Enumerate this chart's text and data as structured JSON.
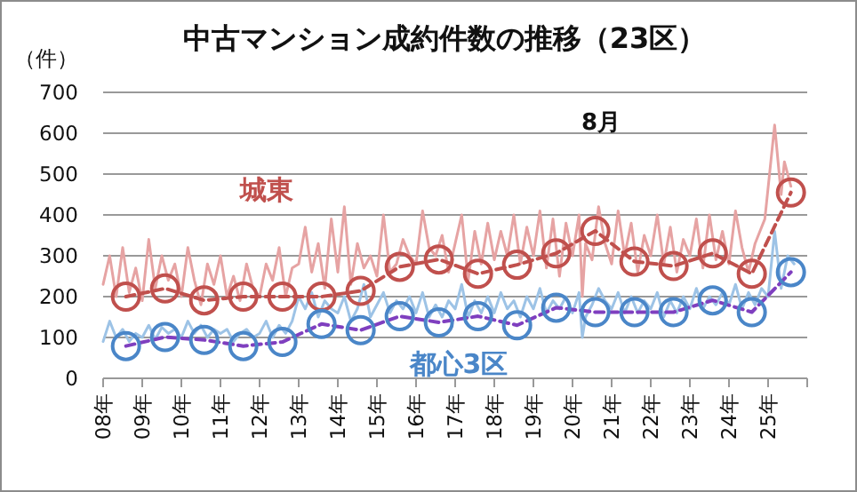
{
  "chart_data": {
    "type": "line",
    "title": "中古マンション成約件数の推移（23区）",
    "ylabel": "（件）",
    "annotations": [
      "8月"
    ],
    "xlim": [
      "2008-01",
      "2026-01"
    ],
    "xticks": [
      {
        "value": "2008-01",
        "label": "08年"
      },
      {
        "value": "2009-01",
        "label": "09年"
      },
      {
        "value": "2010-01",
        "label": "10年"
      },
      {
        "value": "2011-01",
        "label": "11年"
      },
      {
        "value": "2012-01",
        "label": "12年"
      },
      {
        "value": "2013-01",
        "label": "13年"
      },
      {
        "value": "2014-01",
        "label": "14年"
      },
      {
        "value": "2015-01",
        "label": "15年"
      },
      {
        "value": "2016-01",
        "label": "16年"
      },
      {
        "value": "2017-01",
        "label": "17年"
      },
      {
        "value": "2018-01",
        "label": "18年"
      },
      {
        "value": "2019-01",
        "label": "19年"
      },
      {
        "value": "2020-01",
        "label": "20年"
      },
      {
        "value": "2021-01",
        "label": "21年"
      },
      {
        "value": "2022-01",
        "label": "22年"
      },
      {
        "value": "2023-01",
        "label": "23年"
      },
      {
        "value": "2024-01",
        "label": "24年"
      },
      {
        "value": "2025-01",
        "label": "25年"
      },
      {
        "value": "2026-01",
        "label": null
      }
    ],
    "ylim": [
      0,
      700
    ],
    "yticks": [
      0,
      100,
      200,
      300,
      400,
      500,
      600,
      700
    ],
    "grid": "y",
    "series": [
      {
        "type": "line",
        "color": "#e6a3a3",
        "x": [
          "2008-01",
          "2008-03",
          "2008-05",
          "2008-07",
          "2008-09",
          "2008-11",
          "2009-01",
          "2009-03",
          "2009-05",
          "2009-07",
          "2009-09",
          "2009-11",
          "2010-01",
          "2010-03",
          "2010-05",
          "2010-07",
          "2010-09",
          "2010-11",
          "2011-01",
          "2011-03",
          "2011-05",
          "2011-07",
          "2011-09",
          "2011-11",
          "2012-01",
          "2012-03",
          "2012-05",
          "2012-07",
          "2012-09",
          "2012-11",
          "2013-01",
          "2013-03",
          "2013-05",
          "2013-07",
          "2013-09",
          "2013-11",
          "2014-01",
          "2014-03",
          "2014-05",
          "2014-07",
          "2014-09",
          "2014-11",
          "2015-01",
          "2015-03",
          "2015-05",
          "2015-07",
          "2015-09",
          "2015-11",
          "2016-01",
          "2016-03",
          "2016-05",
          "2016-07",
          "2016-09",
          "2016-11",
          "2017-01",
          "2017-03",
          "2017-05",
          "2017-07",
          "2017-09",
          "2017-11",
          "2018-01",
          "2018-03",
          "2018-05",
          "2018-07",
          "2018-09",
          "2018-11",
          "2019-01",
          "2019-03",
          "2019-05",
          "2019-07",
          "2019-09",
          "2019-11",
          "2020-01",
          "2020-03",
          "2020-04",
          "2020-05",
          "2020-07",
          "2020-09",
          "2020-11",
          "2021-01",
          "2021-03",
          "2021-05",
          "2021-07",
          "2021-09",
          "2021-11",
          "2022-01",
          "2022-03",
          "2022-05",
          "2022-07",
          "2022-09",
          "2022-11",
          "2023-01",
          "2023-03",
          "2023-05",
          "2023-07",
          "2023-09",
          "2023-11",
          "2024-01",
          "2024-03",
          "2024-05",
          "2024-07",
          "2024-09",
          "2024-12",
          "2025-03",
          "2025-05",
          "2025-06",
          "2025-08"
        ],
        "values": [
          230,
          300,
          200,
          320,
          210,
          270,
          190,
          340,
          220,
          300,
          240,
          280,
          200,
          320,
          240,
          180,
          280,
          230,
          300,
          200,
          250,
          190,
          280,
          220,
          200,
          280,
          240,
          320,
          200,
          270,
          280,
          370,
          260,
          330,
          220,
          390,
          260,
          420,
          230,
          330,
          270,
          300,
          250,
          400,
          260,
          280,
          340,
          300,
          280,
          410,
          320,
          300,
          350,
          260,
          330,
          400,
          240,
          360,
          280,
          380,
          290,
          360,
          300,
          400,
          280,
          370,
          300,
          410,
          270,
          390,
          250,
          380,
          300,
          400,
          200,
          330,
          290,
          420,
          330,
          280,
          410,
          300,
          380,
          260,
          350,
          300,
          400,
          280,
          370,
          260,
          340,
          300,
          390,
          270,
          400,
          290,
          360,
          280,
          410,
          320,
          260,
          330,
          390,
          620,
          450,
          530,
          470
        ]
      },
      {
        "type": "line",
        "color": "#9dc3e6",
        "x": [
          "2008-01",
          "2008-03",
          "2008-05",
          "2008-07",
          "2008-09",
          "2008-11",
          "2009-01",
          "2009-03",
          "2009-05",
          "2009-07",
          "2009-09",
          "2009-11",
          "2010-01",
          "2010-03",
          "2010-05",
          "2010-07",
          "2010-09",
          "2010-11",
          "2011-01",
          "2011-03",
          "2011-05",
          "2011-07",
          "2011-09",
          "2011-11",
          "2012-01",
          "2012-03",
          "2012-05",
          "2012-07",
          "2012-09",
          "2012-11",
          "2013-01",
          "2013-03",
          "2013-05",
          "2013-07",
          "2013-09",
          "2013-11",
          "2014-01",
          "2014-03",
          "2014-05",
          "2014-07",
          "2014-09",
          "2014-11",
          "2015-01",
          "2015-03",
          "2015-05",
          "2015-07",
          "2015-09",
          "2015-11",
          "2016-01",
          "2016-03",
          "2016-05",
          "2016-07",
          "2016-09",
          "2016-11",
          "2017-01",
          "2017-03",
          "2017-05",
          "2017-07",
          "2017-09",
          "2017-11",
          "2018-01",
          "2018-03",
          "2018-05",
          "2018-07",
          "2018-09",
          "2018-11",
          "2019-01",
          "2019-03",
          "2019-05",
          "2019-07",
          "2019-09",
          "2019-11",
          "2020-01",
          "2020-03",
          "2020-04",
          "2020-05",
          "2020-07",
          "2020-09",
          "2020-11",
          "2021-01",
          "2021-03",
          "2021-05",
          "2021-07",
          "2021-09",
          "2021-11",
          "2022-01",
          "2022-03",
          "2022-05",
          "2022-07",
          "2022-09",
          "2022-11",
          "2023-01",
          "2023-03",
          "2023-05",
          "2023-07",
          "2023-09",
          "2023-11",
          "2024-01",
          "2024-03",
          "2024-05",
          "2024-07",
          "2024-09",
          "2024-11",
          "2025-01",
          "2025-03",
          "2025-05",
          "2025-07",
          "2025-09"
        ],
        "values": [
          90,
          140,
          100,
          120,
          90,
          110,
          100,
          130,
          95,
          125,
          110,
          120,
          100,
          140,
          110,
          130,
          100,
          120,
          110,
          120,
          90,
          110,
          120,
          100,
          110,
          140,
          100,
          130,
          110,
          140,
          200,
          170,
          210,
          150,
          190,
          170,
          160,
          200,
          140,
          170,
          230,
          150,
          180,
          210,
          160,
          190,
          170,
          200,
          160,
          210,
          150,
          180,
          150,
          190,
          170,
          230,
          150,
          190,
          160,
          200,
          160,
          210,
          170,
          190,
          150,
          200,
          170,
          220,
          160,
          190,
          170,
          200,
          160,
          210,
          100,
          150,
          180,
          220,
          190,
          170,
          210,
          160,
          200,
          160,
          190,
          170,
          210,
          150,
          190,
          160,
          200,
          170,
          220,
          170,
          200,
          180,
          210,
          180,
          230,
          170,
          210,
          180,
          220,
          200,
          360,
          220,
          300,
          280
        ]
      },
      {
        "type": "line",
        "color": "#c0504d",
        "line_style": "dashed",
        "marker": "none",
        "x": [
          "2008-08",
          "2009-08",
          "2010-08",
          "2011-08",
          "2012-08",
          "2013-08",
          "2014-08",
          "2015-08",
          "2016-08",
          "2017-08",
          "2018-08",
          "2019-08",
          "2020-08",
          "2021-08",
          "2022-08",
          "2023-08",
          "2024-08",
          "2025-08"
        ],
        "values": [
          200,
          220,
          191,
          200,
          200,
          200,
          214,
          273,
          291,
          256,
          278,
          306,
          361,
          286,
          275,
          306,
          256,
          455
        ]
      },
      {
        "type": "line",
        "color": "#7f3fbf",
        "line_style": "dashed",
        "marker": "none",
        "x": [
          "2008-08",
          "2009-08",
          "2010-08",
          "2011-08",
          "2012-08",
          "2013-08",
          "2014-08",
          "2015-08",
          "2016-08",
          "2017-08",
          "2018-08",
          "2019-08",
          "2020-08",
          "2021-08",
          "2022-08",
          "2023-08",
          "2024-08",
          "2025-08"
        ],
        "values": [
          79,
          101,
          94,
          79,
          89,
          133,
          118,
          152,
          137,
          152,
          130,
          173,
          162,
          162,
          162,
          191,
          162,
          260
        ]
      },
      {
        "type": "scatter",
        "name": "城東",
        "color": "#c0504d",
        "marker": "circle",
        "x": [
          "2008-08",
          "2009-08",
          "2010-08",
          "2011-08",
          "2012-08",
          "2013-08",
          "2014-08",
          "2015-08",
          "2016-08",
          "2017-08",
          "2018-08",
          "2019-08",
          "2020-08",
          "2021-08",
          "2022-08",
          "2023-08",
          "2024-08",
          "2025-08"
        ],
        "values": [
          200,
          220,
          191,
          200,
          200,
          200,
          214,
          273,
          291,
          256,
          278,
          306,
          361,
          286,
          275,
          306,
          256,
          455
        ]
      },
      {
        "type": "scatter",
        "name": "都心3区",
        "color": "#4a86c8",
        "marker": "circle",
        "x": [
          "2008-08",
          "2009-08",
          "2010-08",
          "2011-08",
          "2012-08",
          "2013-08",
          "2014-08",
          "2015-08",
          "2016-08",
          "2017-08",
          "2018-08",
          "2019-08",
          "2020-08",
          "2021-08",
          "2022-08",
          "2023-08",
          "2024-08",
          "2025-08"
        ],
        "values": [
          79,
          101,
          94,
          79,
          89,
          133,
          118,
          152,
          137,
          152,
          130,
          173,
          162,
          162,
          162,
          191,
          162,
          260
        ]
      }
    ]
  }
}
